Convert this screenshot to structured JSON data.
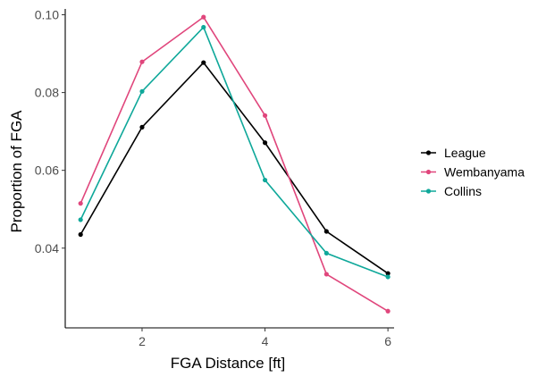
{
  "chart_data": {
    "type": "line",
    "xlabel": "FGA Distance [ft]",
    "ylabel": "Proportion of FGA",
    "x": [
      1,
      2,
      3,
      4,
      5,
      6
    ],
    "xticks": [
      "2",
      "4",
      "6"
    ],
    "yticks": [
      "0.04",
      "0.06",
      "0.08",
      "0.10"
    ],
    "xlim": [
      0.75,
      6.1
    ],
    "ylim": [
      0.0195,
      0.1015
    ],
    "grid": false,
    "legend_position": "right",
    "series": [
      {
        "name": "League",
        "color": "#000000",
        "values": [
          0.0435,
          0.0711,
          0.0877,
          0.0671,
          0.0443,
          0.0335
        ]
      },
      {
        "name": "Wembanyama",
        "color": "#e0467c",
        "values": [
          0.0515,
          0.0879,
          0.0994,
          0.0741,
          0.0333,
          0.0238
        ]
      },
      {
        "name": "Collins",
        "color": "#0fa89a",
        "values": [
          0.0473,
          0.0803,
          0.0968,
          0.0575,
          0.0387,
          0.0326
        ]
      }
    ]
  }
}
